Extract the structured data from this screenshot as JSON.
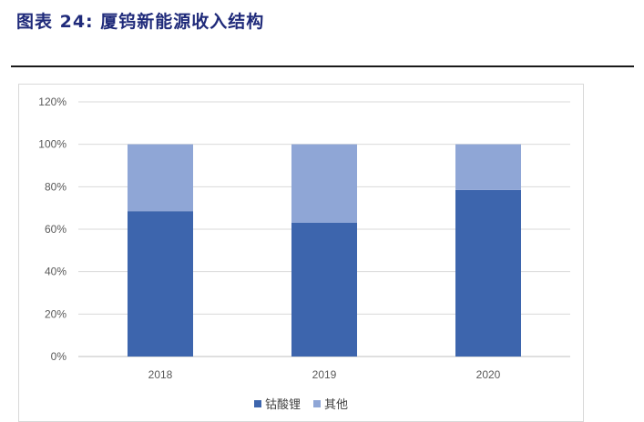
{
  "figure": {
    "title": "图表 24: 厦钨新能源收入结构"
  },
  "chart_data": {
    "type": "bar",
    "stacked": true,
    "categories": [
      "2018",
      "2019",
      "2020"
    ],
    "series": [
      {
        "name": "钴酸锂",
        "values": [
          68.5,
          63,
          78.5
        ],
        "color": "#3d65ad"
      },
      {
        "name": "其他",
        "values": [
          31.5,
          37,
          21.5
        ],
        "color": "#8fa6d6"
      }
    ],
    "ylim": [
      0,
      120
    ],
    "yticks": [
      "0%",
      "20%",
      "40%",
      "60%",
      "80%",
      "100%",
      "120%"
    ],
    "grid": true,
    "legend_position": "bottom",
    "title": "",
    "xlabel": "",
    "ylabel": ""
  }
}
